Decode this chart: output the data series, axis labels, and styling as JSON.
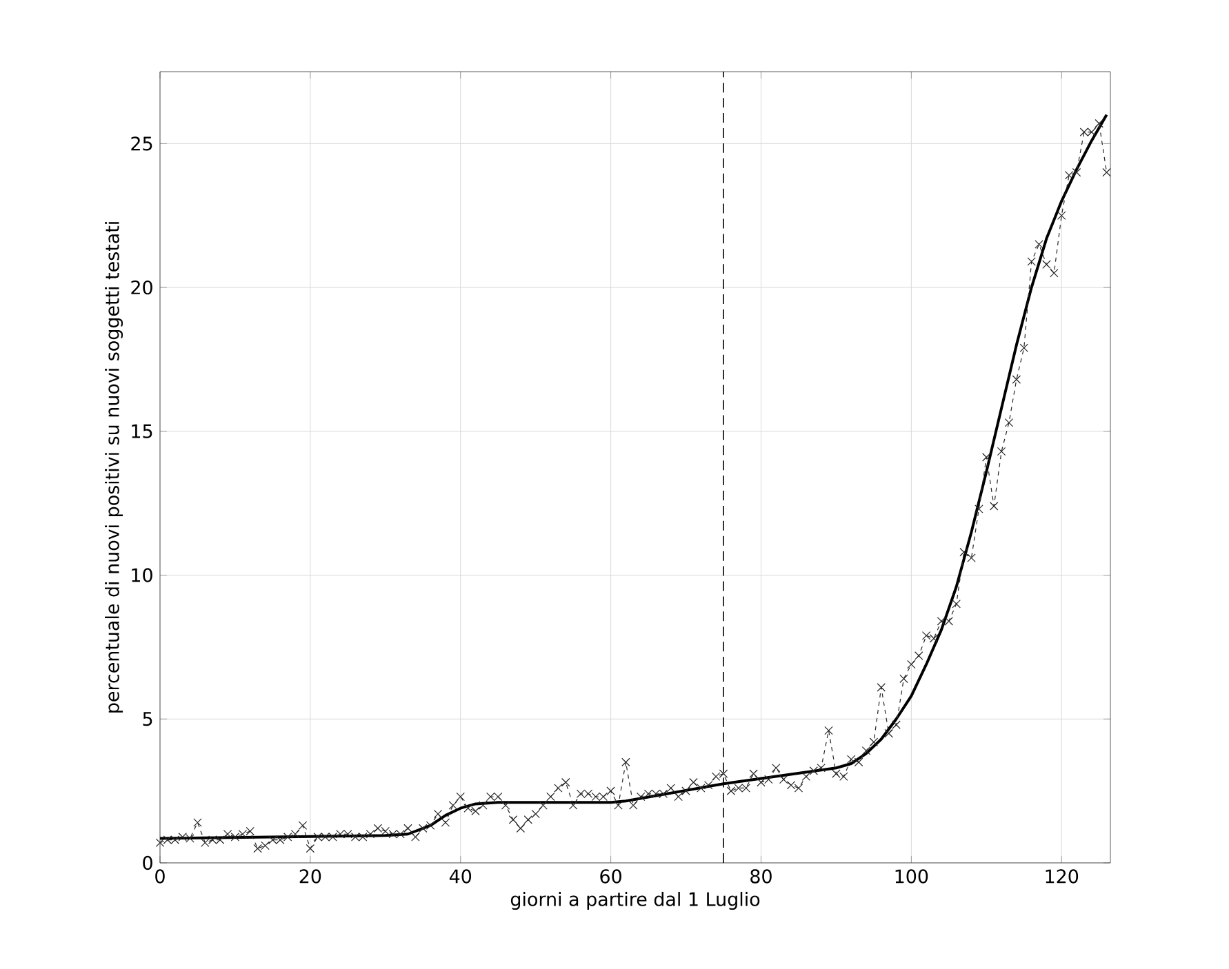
{
  "chart_data": {
    "type": "line",
    "xlabel": "giorni a partire dal 1 Luglio",
    "ylabel": "percentuale di nuovi positivi su nuovi soggetti testati",
    "xlim": [
      0,
      126.5
    ],
    "ylim": [
      0,
      27.5
    ],
    "xticks": [
      0,
      20,
      40,
      60,
      80,
      100,
      120
    ],
    "yticks": [
      0,
      5,
      10,
      15,
      20,
      25
    ],
    "grid": true,
    "x": [
      0,
      1,
      2,
      3,
      4,
      5,
      6,
      7,
      8,
      9,
      10,
      11,
      12,
      13,
      14,
      15,
      16,
      17,
      18,
      19,
      20,
      21,
      22,
      23,
      24,
      25,
      26,
      27,
      28,
      29,
      30,
      31,
      32,
      33,
      34,
      35,
      36,
      37,
      38,
      39,
      40,
      41,
      42,
      43,
      44,
      45,
      46,
      47,
      48,
      49,
      50,
      51,
      52,
      53,
      54,
      55,
      56,
      57,
      58,
      59,
      60,
      61,
      62,
      63,
      64,
      65,
      66,
      67,
      68,
      69,
      70,
      71,
      72,
      73,
      74,
      75,
      76,
      77,
      78,
      79,
      80,
      81,
      82,
      83,
      84,
      85,
      86,
      87,
      88,
      89,
      90,
      91,
      92,
      93,
      94,
      95,
      96,
      97,
      98,
      99,
      100,
      101,
      102,
      103,
      104,
      105,
      106,
      107,
      108,
      109,
      110,
      111,
      112,
      113,
      114,
      115,
      116,
      117,
      118,
      119,
      120,
      121,
      122,
      123,
      124,
      125,
      126
    ],
    "series": [
      {
        "color": "#262626",
        "marker": "cross",
        "line_style": "dashed",
        "values": [
          0.7,
          0.8,
          0.8,
          0.9,
          0.85,
          1.4,
          0.7,
          0.8,
          0.8,
          1.0,
          0.9,
          1.0,
          1.1,
          0.5,
          0.6,
          0.8,
          0.8,
          0.9,
          1.0,
          1.3,
          0.5,
          0.9,
          0.9,
          0.9,
          1.0,
          1.0,
          0.9,
          0.9,
          1.0,
          1.2,
          1.1,
          1.0,
          1.0,
          1.2,
          0.9,
          1.2,
          1.3,
          1.7,
          1.4,
          2.0,
          2.3,
          1.9,
          1.8,
          2.0,
          2.3,
          2.3,
          2.0,
          1.5,
          1.2,
          1.5,
          1.7,
          2.0,
          2.3,
          2.6,
          2.8,
          2.0,
          2.4,
          2.4,
          2.3,
          2.3,
          2.5,
          2.0,
          3.5,
          2.0,
          2.3,
          2.4,
          2.4,
          2.4,
          2.6,
          2.3,
          2.5,
          2.8,
          2.6,
          2.7,
          3.0,
          3.1,
          2.5,
          2.6,
          2.6,
          3.1,
          2.8,
          2.9,
          3.3,
          2.9,
          2.7,
          2.6,
          3.0,
          3.2,
          3.3,
          4.6,
          3.1,
          3.0,
          3.6,
          3.5,
          3.9,
          4.2,
          6.1,
          4.5,
          4.8,
          6.4,
          6.9,
          7.2,
          7.9,
          7.8,
          8.4,
          8.4,
          9.0,
          10.8,
          10.6,
          12.3,
          14.1,
          12.4,
          14.3,
          15.3,
          16.8,
          17.9,
          20.9,
          21.5,
          20.8,
          20.5,
          22.5,
          23.9,
          24.0,
          25.4,
          25.4,
          25.7,
          24.0
        ]
      },
      {
        "color": "#000000",
        "marker": "none",
        "line_style": "solid",
        "x": [
          0,
          30,
          33,
          36,
          38,
          40,
          42,
          45,
          60,
          62,
          75,
          90,
          92,
          94,
          96,
          98,
          100,
          102,
          104,
          106,
          108,
          110,
          112,
          114,
          116,
          118,
          120,
          122,
          124,
          126
        ],
        "values": [
          0.85,
          0.95,
          1.0,
          1.3,
          1.65,
          1.9,
          2.05,
          2.1,
          2.1,
          2.15,
          2.75,
          3.3,
          3.45,
          3.8,
          4.3,
          5.0,
          5.8,
          6.9,
          8.1,
          9.6,
          11.5,
          13.6,
          15.8,
          18.0,
          20.0,
          21.7,
          23.0,
          24.1,
          25.1,
          26.0
        ]
      }
    ],
    "ref_lines": [
      {
        "axis": "x",
        "value": 75,
        "line_style": "dashed",
        "color": "#000000"
      }
    ]
  }
}
